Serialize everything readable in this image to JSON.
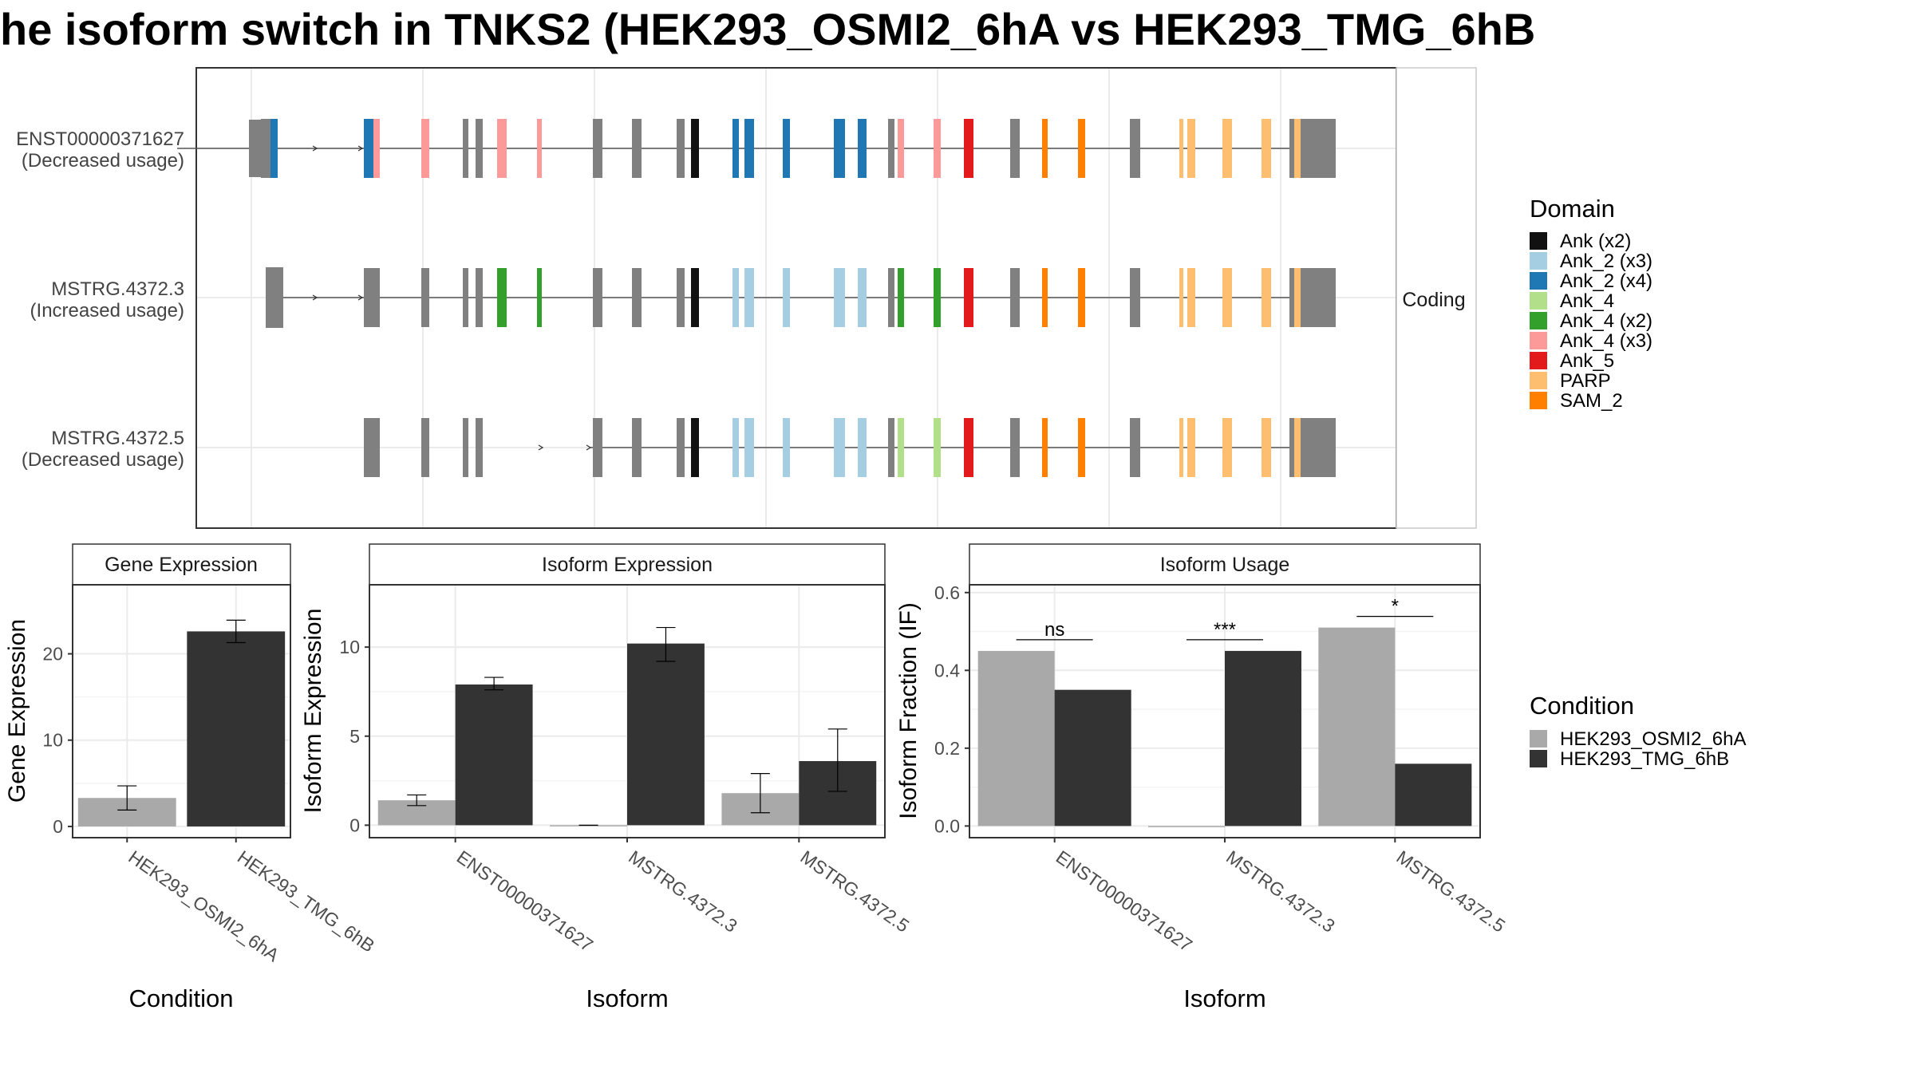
{
  "title": "he isoform switch in TNKS2 (HEK293_OSMI2_6hA vs HEK293_TMG_6hB",
  "chart_data": [
    {
      "type": "transcript_structure",
      "facet_label": "Coding",
      "transcripts": [
        {
          "name": "ENST00000371627",
          "usage": "(Decreased usage)"
        },
        {
          "name": "MSTRG.4372.3",
          "usage": "(Increased usage)"
        },
        {
          "name": "MSTRG.4372.5",
          "usage": "(Decreased usage)"
        }
      ],
      "legend_title": "Domain",
      "domains": [
        {
          "name": "Ank (x2)",
          "color": "#111111"
        },
        {
          "name": "Ank_2 (x3)",
          "color": "#a6cee3"
        },
        {
          "name": "Ank_2 (x4)",
          "color": "#1f78b4"
        },
        {
          "name": "Ank_4",
          "color": "#b2df8a"
        },
        {
          "name": "Ank_4 (x2)",
          "color": "#33a02c"
        },
        {
          "name": "Ank_4 (x3)",
          "color": "#fb9a99"
        },
        {
          "name": "Ank_5",
          "color": "#e31a1c"
        },
        {
          "name": "PARP",
          "color": "#fdbf6f"
        },
        {
          "name": "SAM_2",
          "color": "#ff7f00"
        }
      ],
      "noncoding_color": "#808080"
    },
    {
      "type": "bar",
      "panel_title": "Gene Expression",
      "xlabel": "Condition",
      "ylabel": "Gene Expression",
      "categories": [
        "HEK293_OSMI2_6hA",
        "HEK293_TMG_6hB"
      ],
      "values": [
        3.3,
        22.6
      ],
      "error_low": [
        1.9,
        21.3
      ],
      "error_high": [
        4.7,
        23.9
      ],
      "ylim": [
        -1.3,
        28
      ],
      "yticks": [
        0,
        10,
        20
      ]
    },
    {
      "type": "bar",
      "panel_title": "Isoform Expression",
      "xlabel": "Isoform",
      "ylabel": "Isoform Expression",
      "categories": [
        "ENST00000371627",
        "MSTRG.4372.3",
        "MSTRG.4372.5"
      ],
      "series": [
        {
          "name": "HEK293_OSMI2_6hA",
          "values": [
            1.4,
            0.0,
            1.8
          ],
          "error_low": [
            1.1,
            0.0,
            0.7
          ],
          "error_high": [
            1.7,
            0.0,
            2.9
          ]
        },
        {
          "name": "HEK293_TMG_6hB",
          "values": [
            7.9,
            10.2,
            3.6
          ],
          "error_low": [
            7.6,
            9.2,
            1.9
          ],
          "error_high": [
            8.3,
            11.1,
            5.4
          ]
        }
      ],
      "ylim": [
        -0.7,
        13.5
      ],
      "yticks": [
        0,
        5,
        10
      ]
    },
    {
      "type": "bar",
      "panel_title": "Isoform Usage",
      "xlabel": "Isoform",
      "ylabel": "Isoform Fraction (IF)",
      "categories": [
        "ENST00000371627",
        "MSTRG.4372.3",
        "MSTRG.4372.5"
      ],
      "series": [
        {
          "name": "HEK293_OSMI2_6hA",
          "values": [
            0.45,
            0.0,
            0.51
          ]
        },
        {
          "name": "HEK293_TMG_6hB",
          "values": [
            0.35,
            0.45,
            0.16
          ]
        }
      ],
      "significance": [
        "ns",
        "***",
        "*"
      ],
      "ylim": [
        -0.03,
        0.62
      ],
      "yticks": [
        "0.0",
        "0.2",
        "0.4",
        "0.6"
      ]
    }
  ],
  "condition_legend": {
    "title": "Condition",
    "items": [
      {
        "name": "HEK293_OSMI2_6hA",
        "color": "#a9a9a9"
      },
      {
        "name": "HEK293_TMG_6hB",
        "color": "#333333"
      }
    ]
  }
}
